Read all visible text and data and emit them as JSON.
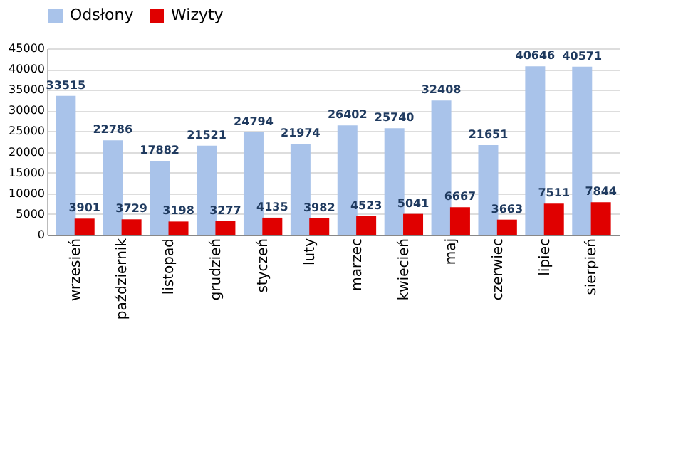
{
  "chart_data": {
    "type": "bar",
    "categories": [
      "wrzesień",
      "październik",
      "listopad",
      "grudzień",
      "styczeń",
      "luty",
      "marzec",
      "kwiecień",
      "maj",
      "czerwiec",
      "lipiec",
      "sierpień"
    ],
    "series": [
      {
        "name": "Odsłony",
        "color": "#a9c3ea",
        "values": [
          33515,
          22786,
          17882,
          21521,
          24794,
          21974,
          26402,
          25740,
          32408,
          21651,
          40646,
          40571
        ]
      },
      {
        "name": "Wizyty",
        "color": "#e00000",
        "values": [
          3901,
          3729,
          3198,
          3277,
          4135,
          3982,
          4523,
          5041,
          6667,
          3663,
          7511,
          7844
        ]
      }
    ],
    "ylim": [
      0,
      45000
    ],
    "yticks": [
      0,
      5000,
      10000,
      15000,
      20000,
      25000,
      30000,
      35000,
      40000,
      45000
    ],
    "grid": "y",
    "legend": "top",
    "data_labels": true
  }
}
